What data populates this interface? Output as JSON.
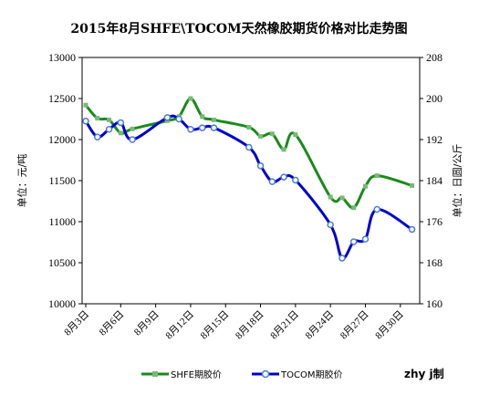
{
  "chart_data": {
    "type": "line",
    "title": "2015年8月SHFE\\TOCOM天然橡胶期货价格对比走势图",
    "ylabel_left": "单位：元/吨",
    "ylabel_right": "单位：日圆/公斤",
    "ylim_left": [
      10000,
      13000
    ],
    "ylim_right": [
      160,
      208
    ],
    "yticks_left": [
      "13000",
      "12500",
      "12000",
      "11500",
      "11000",
      "10500",
      "10000"
    ],
    "yticks_right": [
      "208",
      "200",
      "192",
      "184",
      "176",
      "168",
      "160"
    ],
    "x_tick_labels": [
      "8月3日",
      "8月6日",
      "8月9日",
      "8月12日",
      "8月15日",
      "8月18日",
      "8月21日",
      "8月24日",
      "8月27日",
      "8月30日"
    ],
    "x_tick_days": [
      3,
      6,
      9,
      12,
      15,
      18,
      21,
      24,
      27,
      30
    ],
    "grid": false,
    "legend_position": "bottom",
    "series": [
      {
        "name": "SHFE期胶价",
        "color": "#1a8a1a",
        "marker_color": "#7ab87a",
        "axis": "left",
        "x": [
          3,
          4,
          5,
          6,
          7,
          10,
          11,
          12,
          13,
          14,
          17,
          18,
          19,
          20,
          21,
          24,
          25,
          26,
          27,
          28,
          31
        ],
        "values": [
          12420,
          12260,
          12240,
          12080,
          12130,
          12230,
          12280,
          12500,
          12280,
          12240,
          12150,
          12040,
          12070,
          11880,
          12060,
          11300,
          11290,
          11170,
          11430,
          11560,
          11440
        ]
      },
      {
        "name": "TOCOM期胶价",
        "color": "#0000cc",
        "marker_color": "#4a7bd8",
        "axis": "right",
        "x": [
          3,
          4,
          5,
          6,
          7,
          10,
          11,
          12,
          13,
          14,
          17,
          18,
          19,
          20,
          21,
          24,
          25,
          26,
          27,
          28,
          31
        ],
        "values": [
          195.6,
          192.5,
          194.0,
          195.3,
          192.0,
          196.3,
          196.0,
          194.0,
          194.3,
          194.3,
          190.5,
          186.9,
          183.8,
          184.7,
          184.1,
          175.4,
          168.9,
          172.1,
          172.6,
          178.4,
          174.5
        ]
      }
    ],
    "credit": "zhy j制"
  }
}
